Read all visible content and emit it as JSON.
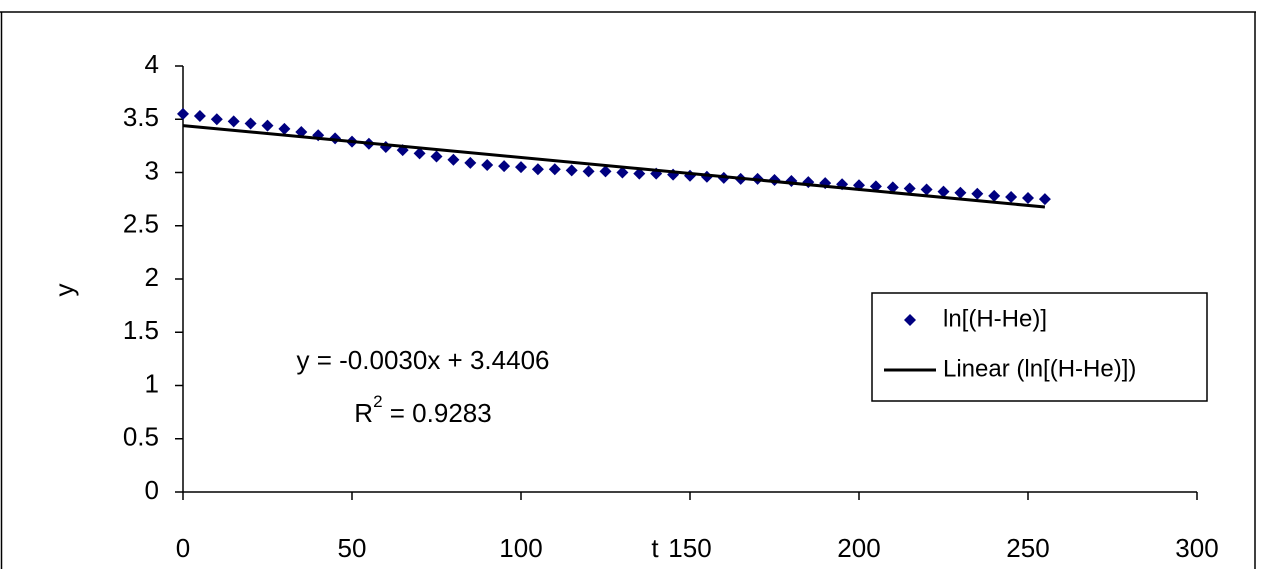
{
  "chart_data": {
    "type": "scatter",
    "xlabel": "t",
    "ylabel": "y",
    "x": [
      0,
      5,
      10,
      15,
      20,
      25,
      30,
      35,
      40,
      45,
      50,
      55,
      60,
      65,
      70,
      75,
      80,
      85,
      90,
      95,
      100,
      105,
      110,
      115,
      120,
      125,
      130,
      135,
      140,
      145,
      150,
      155,
      160,
      165,
      170,
      175,
      180,
      185,
      190,
      195,
      200,
      205,
      210,
      215,
      220,
      225,
      230,
      235,
      240,
      245,
      250,
      255
    ],
    "series": [
      {
        "name": "ln[(H-He)]",
        "color": "#000080",
        "marker": "diamond",
        "values": [
          3.55,
          3.53,
          3.5,
          3.48,
          3.46,
          3.44,
          3.41,
          3.38,
          3.35,
          3.32,
          3.29,
          3.27,
          3.24,
          3.21,
          3.18,
          3.15,
          3.12,
          3.09,
          3.07,
          3.06,
          3.05,
          3.03,
          3.03,
          3.02,
          3.01,
          3.01,
          3.0,
          2.99,
          2.99,
          2.98,
          2.97,
          2.96,
          2.95,
          2.94,
          2.94,
          2.93,
          2.92,
          2.91,
          2.9,
          2.89,
          2.88,
          2.87,
          2.86,
          2.85,
          2.84,
          2.82,
          2.81,
          2.8,
          2.78,
          2.77,
          2.76,
          2.75
        ]
      },
      {
        "name": "Linear (ln[(H-He)])",
        "color": "#000000",
        "marker": "line",
        "x": [
          0,
          255
        ],
        "values": [
          3.4406,
          2.6756
        ]
      }
    ],
    "annotations": {
      "equation": "y = -0.0030x + 3.4406",
      "r2": {
        "symbol": "R",
        "power": "2",
        "rest": " = 0.9283"
      }
    },
    "xlim": [
      0,
      300
    ],
    "xticks": [
      0,
      50,
      100,
      150,
      200,
      250,
      300
    ],
    "ylim": [
      0,
      4
    ],
    "yticks": [
      0,
      0.5,
      1,
      1.5,
      2,
      2.5,
      3,
      3.5,
      4
    ],
    "legend": "right"
  }
}
